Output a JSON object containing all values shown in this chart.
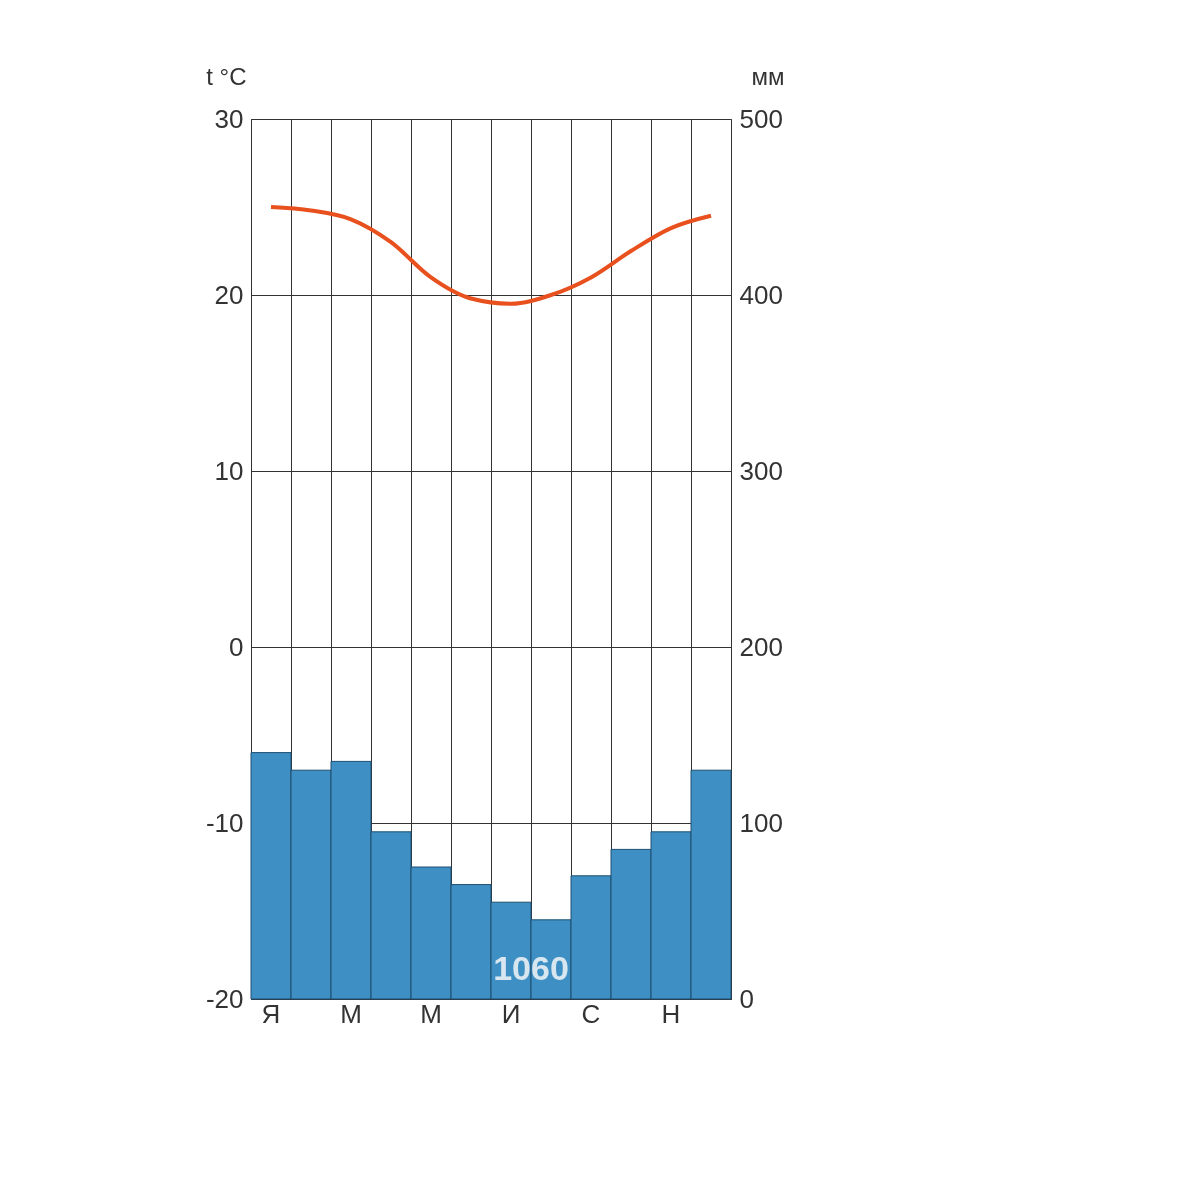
{
  "chart_data": {
    "type": "bar",
    "categories": [
      "Я",
      null,
      "М",
      null,
      "М",
      null,
      "И",
      null,
      "С",
      null,
      "Н",
      null
    ],
    "series": [
      {
        "axis": "y2",
        "color": "#3d8fc4",
        "values": [
          140,
          130,
          135,
          95,
          75,
          65,
          55,
          45,
          70,
          85,
          95,
          130
        ]
      },
      {
        "type": "line",
        "color": "#e8501e",
        "values": [
          25,
          24.8,
          24.3,
          23,
          21,
          19.8,
          19.5,
          20,
          21,
          22.5,
          23.8,
          24.5
        ]
      }
    ],
    "ylabel": "t °C",
    "y2label": "мм",
    "ylim": [
      -20,
      30
    ],
    "yticks": [
      -20,
      -10,
      0,
      10,
      20,
      30
    ],
    "y2lim": [
      0,
      500
    ],
    "y2ticks": [
      0,
      100,
      200,
      300,
      400,
      500
    ],
    "annotations": [
      "1060"
    ],
    "grid": true,
    "marker": "none",
    "line_style": "solid"
  }
}
